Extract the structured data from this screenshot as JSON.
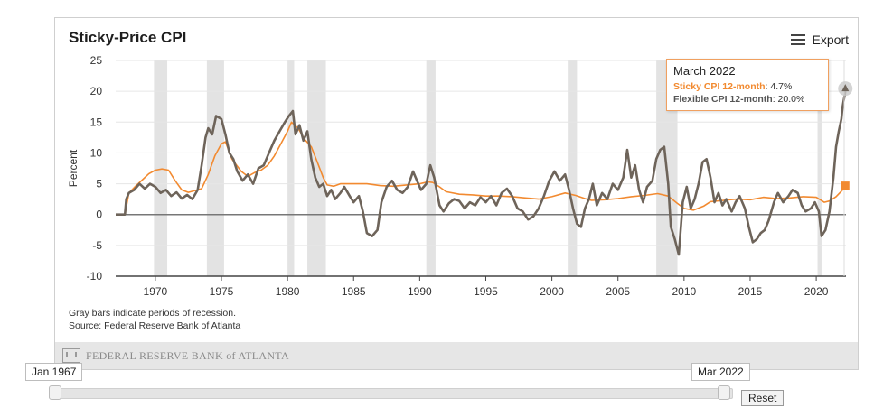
{
  "header": {
    "title": "Sticky-Price CPI",
    "export_label": "Export"
  },
  "notes": {
    "line1": "Gray bars indicate periods of recession.",
    "line2": "Source: Federal Reserve Bank of Atlanta"
  },
  "footer": {
    "logo_text": "FEDERAL RESERVE BANK of ATLANTA"
  },
  "tooltip": {
    "date": "March 2022",
    "sticky_name": "Sticky CPI 12-month",
    "sticky_value": "4.7%",
    "flex_name": "Flexible CPI 12-month",
    "flex_value": "20.0%"
  },
  "navigator": {
    "start_label": "Jan 1967",
    "end_label": "Mar 2022",
    "reset_label": "Reset"
  },
  "colors": {
    "sticky": "#f28a30",
    "flexible": "#6e645a",
    "recession": "#e3e3e3"
  },
  "chart_data": {
    "type": "line",
    "title": "Sticky-Price CPI",
    "ylabel": "Percent",
    "xlabel": "",
    "xlim": [
      1967,
      2022.25
    ],
    "ylim": [
      -10,
      25
    ],
    "yticks": [
      -10,
      -5,
      0,
      5,
      10,
      15,
      20,
      25
    ],
    "xticks": [
      1970,
      1975,
      1980,
      1985,
      1990,
      1995,
      2000,
      2005,
      2010,
      2015,
      2020
    ],
    "recessions": [
      [
        1969.9,
        1970.9
      ],
      [
        1973.9,
        1975.2
      ],
      [
        1980.0,
        1980.5
      ],
      [
        1981.5,
        1982.9
      ],
      [
        1990.5,
        1991.2
      ],
      [
        2001.2,
        2001.9
      ],
      [
        2007.9,
        2009.5
      ],
      [
        2020.1,
        2020.4
      ]
    ],
    "series": [
      {
        "name": "Sticky CPI 12-month",
        "color": "#f28a30",
        "points": [
          [
            1967.0,
            0.0
          ],
          [
            1967.7,
            0.0
          ],
          [
            1968.0,
            3.5
          ],
          [
            1968.5,
            4.6
          ],
          [
            1969.0,
            5.6
          ],
          [
            1969.5,
            6.6
          ],
          [
            1970.0,
            7.2
          ],
          [
            1970.5,
            7.4
          ],
          [
            1971.0,
            7.2
          ],
          [
            1971.5,
            5.5
          ],
          [
            1972.0,
            4.0
          ],
          [
            1972.5,
            3.6
          ],
          [
            1973.0,
            3.9
          ],
          [
            1973.5,
            4.2
          ],
          [
            1974.0,
            6.5
          ],
          [
            1974.5,
            9.5
          ],
          [
            1975.0,
            11.5
          ],
          [
            1975.3,
            11.8
          ],
          [
            1975.8,
            9.0
          ],
          [
            1976.5,
            7.0
          ],
          [
            1977.0,
            6.2
          ],
          [
            1977.5,
            6.8
          ],
          [
            1978.0,
            7.2
          ],
          [
            1978.5,
            8.0
          ],
          [
            1979.0,
            9.5
          ],
          [
            1979.5,
            11.5
          ],
          [
            1980.0,
            13.5
          ],
          [
            1980.3,
            15.0
          ],
          [
            1980.8,
            14.0
          ],
          [
            1981.3,
            12.2
          ],
          [
            1981.8,
            11.0
          ],
          [
            1982.2,
            8.8
          ],
          [
            1982.7,
            6.0
          ],
          [
            1983.0,
            4.8
          ],
          [
            1983.5,
            4.6
          ],
          [
            1984.0,
            5.0
          ],
          [
            1985.0,
            5.0
          ],
          [
            1986.0,
            5.0
          ],
          [
            1987.0,
            4.7
          ],
          [
            1988.0,
            4.6
          ],
          [
            1989.0,
            4.8
          ],
          [
            1990.0,
            5.0
          ],
          [
            1990.6,
            5.3
          ],
          [
            1991.0,
            5.2
          ],
          [
            1991.5,
            4.5
          ],
          [
            1992.0,
            3.7
          ],
          [
            1993.0,
            3.3
          ],
          [
            1994.0,
            3.2
          ],
          [
            1995.0,
            3.0
          ],
          [
            1996.0,
            3.0
          ],
          [
            1997.0,
            2.9
          ],
          [
            1998.0,
            2.7
          ],
          [
            1999.0,
            2.5
          ],
          [
            2000.0,
            2.9
          ],
          [
            2001.0,
            3.5
          ],
          [
            2001.8,
            3.1
          ],
          [
            2002.5,
            2.6
          ],
          [
            2003.0,
            2.3
          ],
          [
            2004.0,
            2.4
          ],
          [
            2005.0,
            2.6
          ],
          [
            2006.0,
            2.9
          ],
          [
            2007.0,
            3.1
          ],
          [
            2008.0,
            3.4
          ],
          [
            2008.8,
            3.0
          ],
          [
            2009.5,
            1.8
          ],
          [
            2010.0,
            1.0
          ],
          [
            2010.7,
            0.7
          ],
          [
            2011.5,
            1.4
          ],
          [
            2012.0,
            2.1
          ],
          [
            2013.0,
            2.3
          ],
          [
            2014.0,
            2.5
          ],
          [
            2015.0,
            2.4
          ],
          [
            2016.0,
            2.8
          ],
          [
            2017.0,
            2.6
          ],
          [
            2018.0,
            2.7
          ],
          [
            2019.0,
            2.9
          ],
          [
            2020.0,
            2.8
          ],
          [
            2020.6,
            2.0
          ],
          [
            2021.0,
            2.2
          ],
          [
            2021.5,
            2.9
          ],
          [
            2022.0,
            4.0
          ],
          [
            2022.2,
            4.7
          ]
        ]
      },
      {
        "name": "Flexible CPI 12-month",
        "color": "#6e645a",
        "points": [
          [
            1967.0,
            0.0
          ],
          [
            1967.7,
            0.0
          ],
          [
            1967.8,
            2.5
          ],
          [
            1968.0,
            3.5
          ],
          [
            1968.4,
            4.0
          ],
          [
            1968.8,
            5.0
          ],
          [
            1969.2,
            4.2
          ],
          [
            1969.6,
            5.0
          ],
          [
            1970.0,
            4.5
          ],
          [
            1970.4,
            3.5
          ],
          [
            1970.8,
            4.0
          ],
          [
            1971.2,
            3.0
          ],
          [
            1971.6,
            3.6
          ],
          [
            1972.0,
            2.6
          ],
          [
            1972.4,
            3.2
          ],
          [
            1972.8,
            2.5
          ],
          [
            1973.2,
            4.0
          ],
          [
            1973.5,
            8.0
          ],
          [
            1973.8,
            12.5
          ],
          [
            1974.0,
            14.0
          ],
          [
            1974.3,
            13.0
          ],
          [
            1974.6,
            16.0
          ],
          [
            1975.0,
            15.5
          ],
          [
            1975.3,
            13.0
          ],
          [
            1975.6,
            10.0
          ],
          [
            1975.9,
            9.0
          ],
          [
            1976.2,
            7.0
          ],
          [
            1976.6,
            5.5
          ],
          [
            1977.0,
            6.5
          ],
          [
            1977.4,
            5.0
          ],
          [
            1977.8,
            7.5
          ],
          [
            1978.2,
            8.0
          ],
          [
            1978.6,
            10.0
          ],
          [
            1979.0,
            12.0
          ],
          [
            1979.4,
            13.5
          ],
          [
            1979.8,
            15.0
          ],
          [
            1980.1,
            16.0
          ],
          [
            1980.4,
            16.8
          ],
          [
            1980.6,
            13.0
          ],
          [
            1980.9,
            14.5
          ],
          [
            1981.2,
            12.0
          ],
          [
            1981.5,
            13.5
          ],
          [
            1981.8,
            9.0
          ],
          [
            1982.1,
            6.0
          ],
          [
            1982.4,
            4.5
          ],
          [
            1982.7,
            5.0
          ],
          [
            1983.0,
            3.0
          ],
          [
            1983.3,
            4.0
          ],
          [
            1983.6,
            2.5
          ],
          [
            1984.0,
            3.5
          ],
          [
            1984.3,
            4.5
          ],
          [
            1984.7,
            3.0
          ],
          [
            1985.0,
            2.0
          ],
          [
            1985.4,
            3.0
          ],
          [
            1985.7,
            0.5
          ],
          [
            1986.0,
            -3.0
          ],
          [
            1986.4,
            -3.5
          ],
          [
            1986.8,
            -2.5
          ],
          [
            1987.1,
            2.0
          ],
          [
            1987.5,
            4.5
          ],
          [
            1987.9,
            5.5
          ],
          [
            1988.3,
            4.0
          ],
          [
            1988.7,
            3.5
          ],
          [
            1989.1,
            4.5
          ],
          [
            1989.5,
            7.0
          ],
          [
            1989.8,
            5.5
          ],
          [
            1990.1,
            4.0
          ],
          [
            1990.5,
            5.0
          ],
          [
            1990.8,
            8.0
          ],
          [
            1991.1,
            6.0
          ],
          [
            1991.5,
            1.5
          ],
          [
            1991.8,
            0.5
          ],
          [
            1992.2,
            1.8
          ],
          [
            1992.6,
            2.5
          ],
          [
            1993.0,
            2.2
          ],
          [
            1993.4,
            1.0
          ],
          [
            1993.8,
            2.0
          ],
          [
            1994.2,
            1.5
          ],
          [
            1994.6,
            2.8
          ],
          [
            1995.0,
            2.0
          ],
          [
            1995.4,
            3.0
          ],
          [
            1995.8,
            1.5
          ],
          [
            1996.2,
            3.5
          ],
          [
            1996.6,
            4.2
          ],
          [
            1997.0,
            3.0
          ],
          [
            1997.4,
            1.0
          ],
          [
            1997.8,
            0.5
          ],
          [
            1998.2,
            -0.8
          ],
          [
            1998.6,
            -0.3
          ],
          [
            1999.0,
            1.0
          ],
          [
            1999.4,
            3.0
          ],
          [
            1999.8,
            5.5
          ],
          [
            2000.2,
            7.0
          ],
          [
            2000.6,
            5.5
          ],
          [
            2001.0,
            6.5
          ],
          [
            2001.3,
            4.0
          ],
          [
            2001.6,
            1.0
          ],
          [
            2001.9,
            -1.5
          ],
          [
            2002.2,
            -2.0
          ],
          [
            2002.5,
            1.0
          ],
          [
            2002.8,
            2.5
          ],
          [
            2003.1,
            5.0
          ],
          [
            2003.4,
            1.5
          ],
          [
            2003.8,
            3.5
          ],
          [
            2004.2,
            2.5
          ],
          [
            2004.6,
            5.0
          ],
          [
            2005.0,
            4.0
          ],
          [
            2005.4,
            6.0
          ],
          [
            2005.7,
            10.5
          ],
          [
            2006.0,
            6.0
          ],
          [
            2006.3,
            8.0
          ],
          [
            2006.6,
            4.0
          ],
          [
            2006.9,
            2.0
          ],
          [
            2007.2,
            4.5
          ],
          [
            2007.6,
            5.5
          ],
          [
            2007.9,
            9.0
          ],
          [
            2008.2,
            10.5
          ],
          [
            2008.5,
            11.0
          ],
          [
            2008.8,
            5.0
          ],
          [
            2009.0,
            -2.0
          ],
          [
            2009.3,
            -4.0
          ],
          [
            2009.6,
            -6.5
          ],
          [
            2009.9,
            2.0
          ],
          [
            2010.2,
            4.5
          ],
          [
            2010.5,
            1.0
          ],
          [
            2010.8,
            2.5
          ],
          [
            2011.1,
            5.0
          ],
          [
            2011.4,
            8.5
          ],
          [
            2011.7,
            9.0
          ],
          [
            2012.0,
            6.0
          ],
          [
            2012.3,
            2.0
          ],
          [
            2012.6,
            3.5
          ],
          [
            2012.9,
            1.5
          ],
          [
            2013.2,
            2.5
          ],
          [
            2013.6,
            0.5
          ],
          [
            2013.9,
            2.0
          ],
          [
            2014.2,
            3.0
          ],
          [
            2014.6,
            1.0
          ],
          [
            2014.9,
            -2.0
          ],
          [
            2015.2,
            -4.5
          ],
          [
            2015.5,
            -4.0
          ],
          [
            2015.8,
            -3.0
          ],
          [
            2016.1,
            -2.5
          ],
          [
            2016.4,
            -1.0
          ],
          [
            2016.8,
            2.0
          ],
          [
            2017.1,
            3.5
          ],
          [
            2017.5,
            2.0
          ],
          [
            2017.9,
            3.0
          ],
          [
            2018.2,
            4.0
          ],
          [
            2018.6,
            3.5
          ],
          [
            2018.9,
            1.5
          ],
          [
            2019.2,
            0.5
          ],
          [
            2019.6,
            1.0
          ],
          [
            2019.9,
            2.0
          ],
          [
            2020.2,
            0.5
          ],
          [
            2020.4,
            -3.5
          ],
          [
            2020.7,
            -2.5
          ],
          [
            2021.0,
            0.5
          ],
          [
            2021.3,
            6.0
          ],
          [
            2021.5,
            11.0
          ],
          [
            2021.7,
            13.5
          ],
          [
            2021.9,
            15.5
          ],
          [
            2022.0,
            17.5
          ],
          [
            2022.2,
            20.0
          ]
        ]
      }
    ]
  }
}
